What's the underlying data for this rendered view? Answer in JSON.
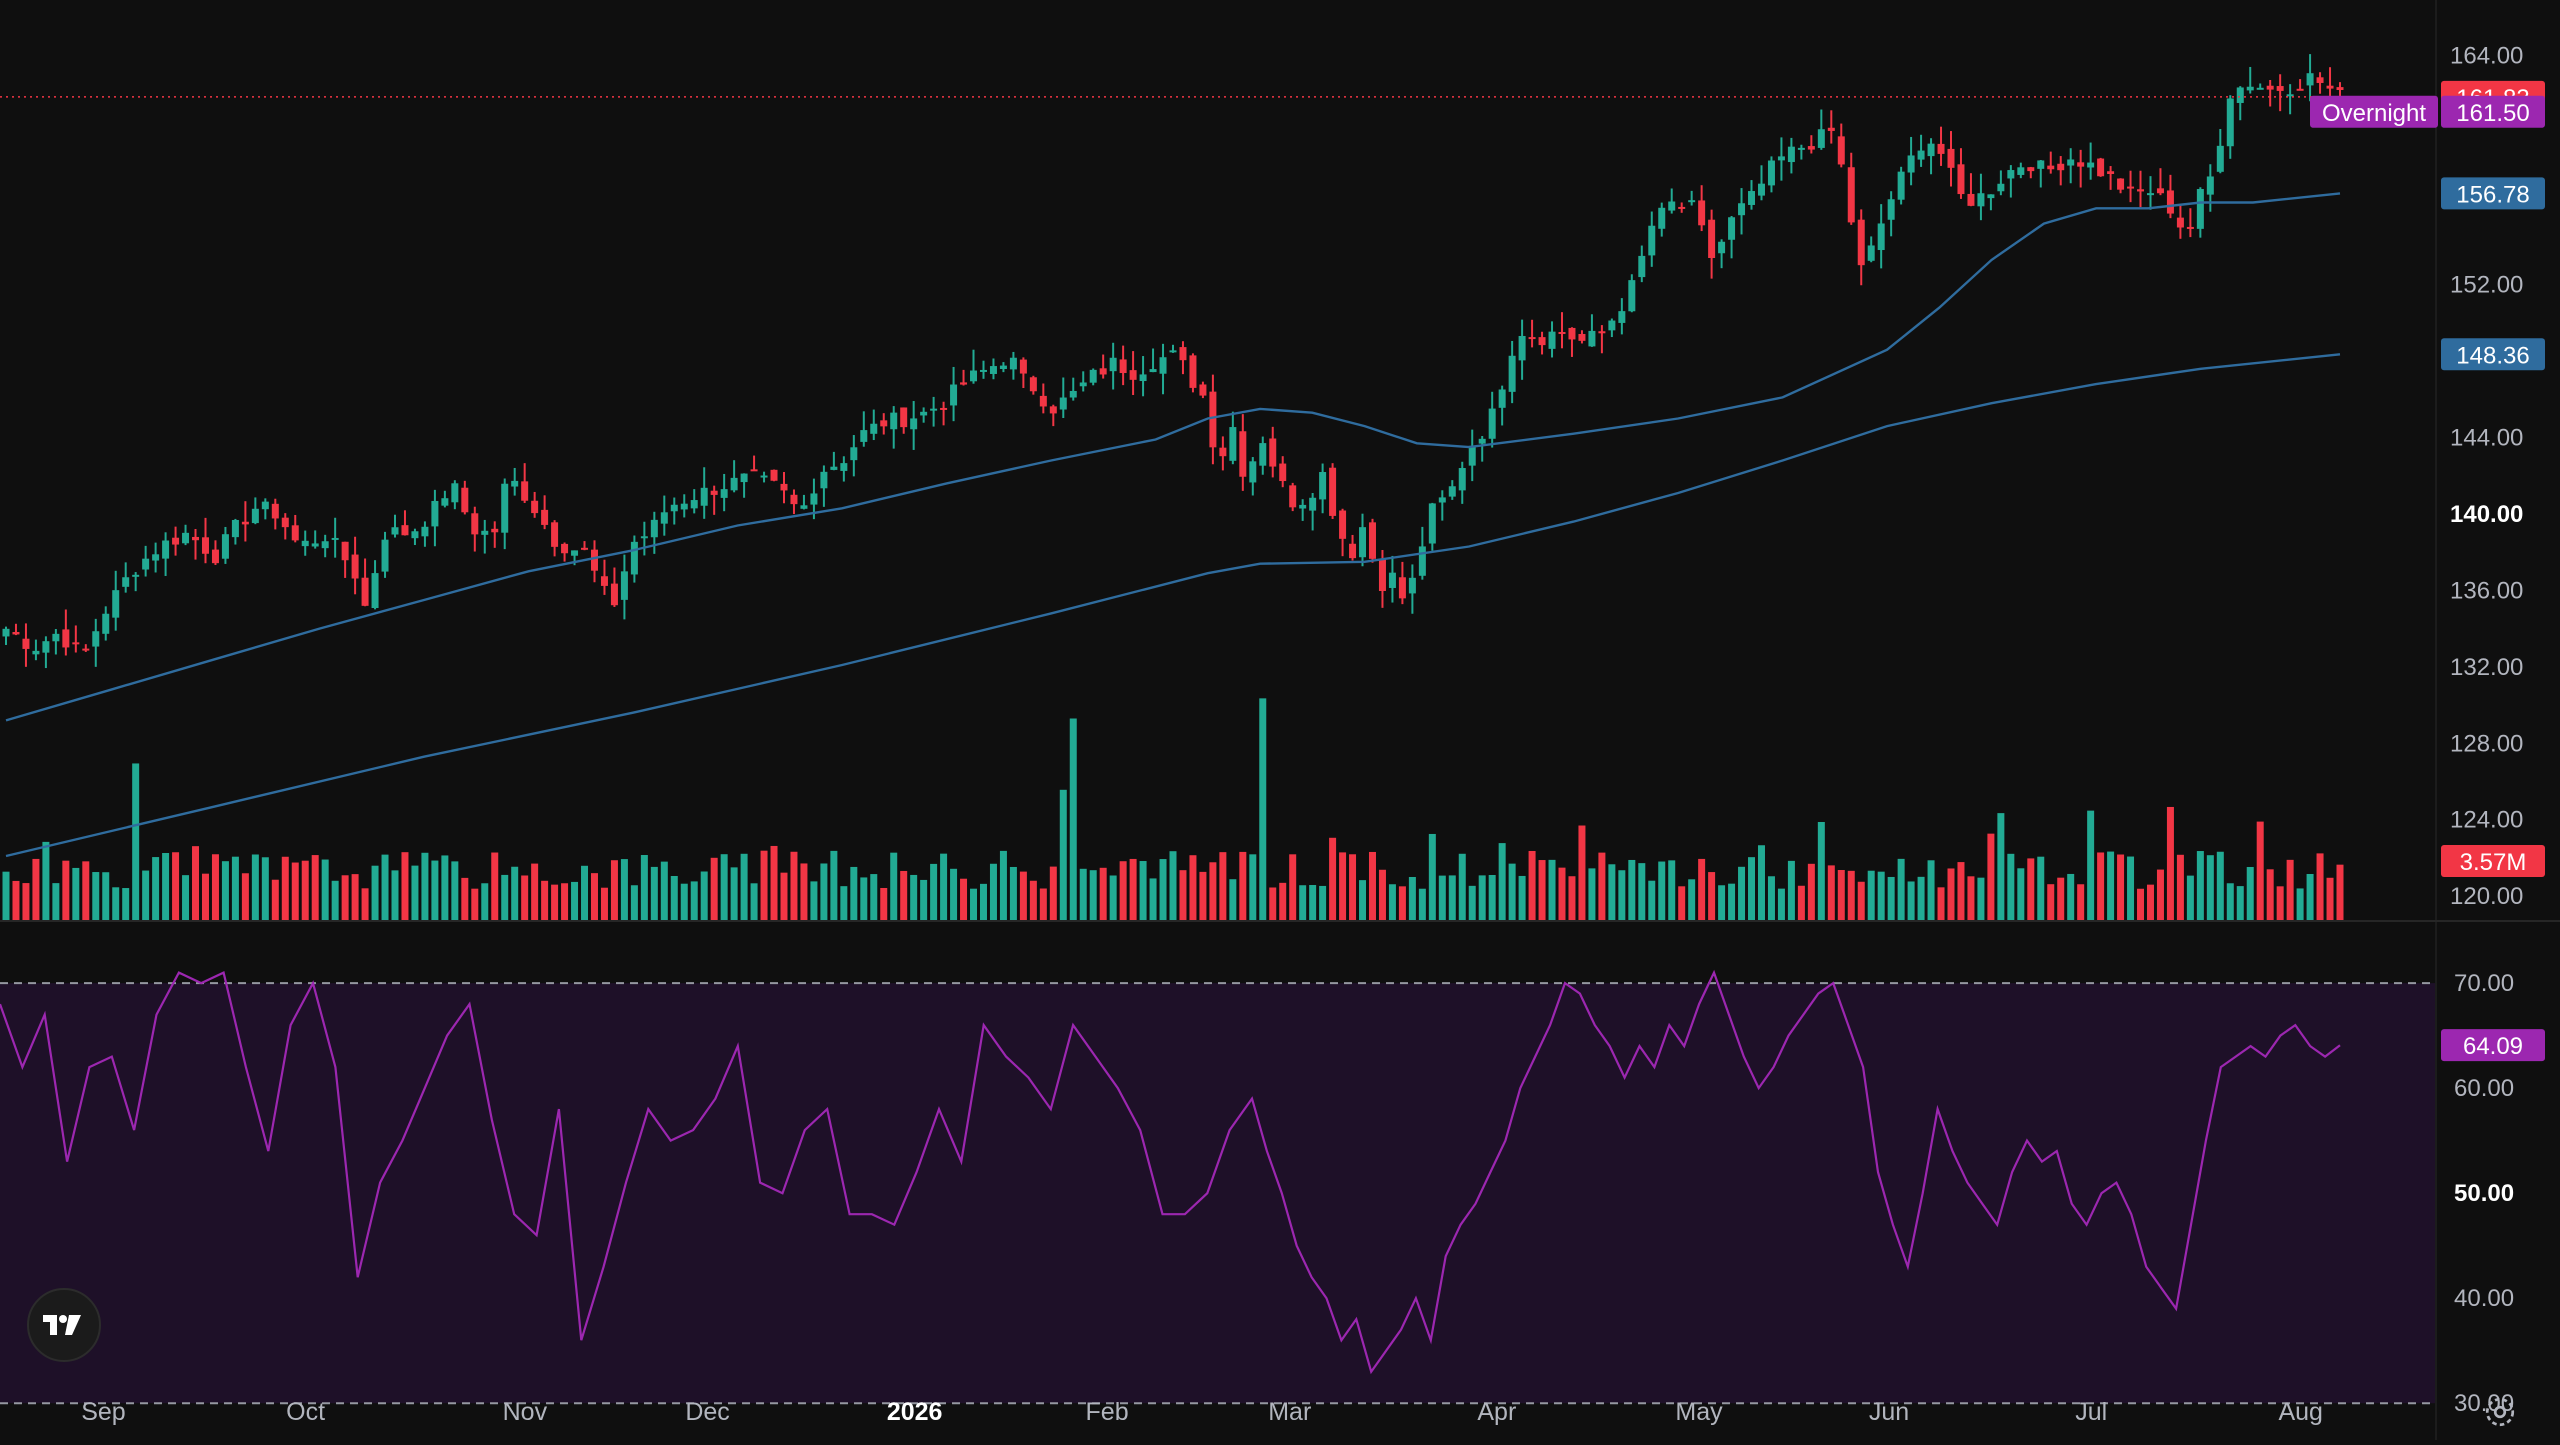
{
  "chart_data": [
    {
      "type": "candlestick",
      "pane": "price",
      "y_axis_ticks": [
        "164.00",
        "152.00",
        "144.00",
        "140.00",
        "136.00",
        "132.00",
        "128.00",
        "124.00",
        "120.00"
      ],
      "bold_tick": "140.00",
      "ylim": [
        118.7,
        166.9
      ],
      "x_axis_labels": [
        "Sep",
        "Oct",
        "Nov",
        "Dec",
        "2026",
        "Feb",
        "Mar",
        "Apr",
        "May",
        "Jun",
        "Jul",
        "Aug"
      ],
      "bold_x_label": "2026",
      "last_price": {
        "label": "161.83",
        "value": 161.83,
        "color": "#f23645"
      },
      "overnight": {
        "tag": "Overnight",
        "label": "161.50",
        "value": 161.5,
        "color": "#9c27b0"
      },
      "ma_fast": {
        "label": "156.78",
        "value": 156.78,
        "color": "#2f6c9e",
        "points": [
          [
            0,
            129.2
          ],
          [
            30,
            130.8
          ],
          [
            60,
            132.4
          ],
          [
            90,
            134
          ],
          [
            120,
            135.5
          ],
          [
            150,
            137
          ],
          [
            180,
            138.1
          ],
          [
            210,
            139.4
          ],
          [
            240,
            140.3
          ],
          [
            270,
            141.6
          ],
          [
            300,
            142.8
          ],
          [
            330,
            143.9
          ],
          [
            345,
            145
          ],
          [
            360,
            145.5
          ],
          [
            375,
            145.3
          ],
          [
            390,
            144.6
          ],
          [
            405,
            143.7
          ],
          [
            420,
            143.5
          ],
          [
            450,
            144.2
          ],
          [
            480,
            145
          ],
          [
            510,
            146.1
          ],
          [
            540,
            148.6
          ],
          [
            555,
            150.8
          ],
          [
            570,
            153.3
          ],
          [
            585,
            155.2
          ],
          [
            600,
            156
          ],
          [
            615,
            156
          ],
          [
            630,
            156.3
          ],
          [
            645,
            156.3
          ],
          [
            670,
            156.78
          ]
        ]
      },
      "ma_slow": {
        "label": "148.36",
        "value": 148.36,
        "color": "#2f6c9e",
        "points": [
          [
            0,
            122.1
          ],
          [
            60,
            124.7
          ],
          [
            120,
            127.3
          ],
          [
            180,
            129.6
          ],
          [
            240,
            132.1
          ],
          [
            300,
            134.8
          ],
          [
            345,
            136.9
          ],
          [
            360,
            137.4
          ],
          [
            390,
            137.5
          ],
          [
            420,
            138.3
          ],
          [
            450,
            139.6
          ],
          [
            480,
            141.1
          ],
          [
            510,
            142.8
          ],
          [
            540,
            144.6
          ],
          [
            570,
            145.8
          ],
          [
            600,
            146.8
          ],
          [
            630,
            147.6
          ],
          [
            670,
            148.36
          ]
        ]
      },
      "price_path": [
        [
          0,
          134
        ],
        [
          8,
          133
        ],
        [
          15,
          133.8
        ],
        [
          22,
          132.5
        ],
        [
          28,
          134.8
        ],
        [
          36,
          137
        ],
        [
          44,
          138.3
        ],
        [
          52,
          139
        ],
        [
          60,
          137.8
        ],
        [
          66,
          139.3
        ],
        [
          72,
          140.4
        ],
        [
          78,
          140
        ],
        [
          84,
          138.3
        ],
        [
          92,
          138.9
        ],
        [
          100,
          137
        ],
        [
          103,
          135.1
        ],
        [
          109,
          139.1
        ],
        [
          116,
          139
        ],
        [
          122,
          140
        ],
        [
          128,
          141.6
        ],
        [
          134,
          139.2
        ],
        [
          140,
          138.9
        ],
        [
          144,
          142
        ],
        [
          150,
          140.8
        ],
        [
          158,
          138.5
        ],
        [
          166,
          138
        ],
        [
          174,
          135
        ],
        [
          180,
          138.5
        ],
        [
          185,
          139.1
        ],
        [
          190,
          140.4
        ],
        [
          198,
          141
        ],
        [
          206,
          141.5
        ],
        [
          214,
          141.9
        ],
        [
          222,
          141.3
        ],
        [
          228,
          140
        ],
        [
          234,
          142.3
        ],
        [
          240,
          142.8
        ],
        [
          246,
          144.2
        ],
        [
          252,
          144.8
        ],
        [
          258,
          145
        ],
        [
          264,
          145.3
        ],
        [
          270,
          146
        ],
        [
          276,
          147
        ],
        [
          282,
          147.6
        ],
        [
          288,
          148.3
        ],
        [
          292,
          147
        ],
        [
          296,
          146.5
        ],
        [
          300,
          145.5
        ],
        [
          306,
          146.2
        ],
        [
          312,
          147.2
        ],
        [
          318,
          147.9
        ],
        [
          324,
          147.4
        ],
        [
          330,
          148.1
        ],
        [
          336,
          148.3
        ],
        [
          340,
          147.1
        ],
        [
          344,
          146.1
        ],
        [
          348,
          142.5
        ],
        [
          352,
          144.7
        ],
        [
          356,
          141.6
        ],
        [
          360,
          144.3
        ],
        [
          366,
          141.6
        ],
        [
          370,
          140.5
        ],
        [
          374,
          141
        ],
        [
          378,
          142.1
        ],
        [
          382,
          139.5
        ],
        [
          386,
          137.8
        ],
        [
          390,
          139.6
        ],
        [
          394,
          136.3
        ],
        [
          398,
          136.7
        ],
        [
          402,
          135.2
        ],
        [
          406,
          138.1
        ],
        [
          410,
          140.5
        ],
        [
          414,
          140.8
        ],
        [
          420,
          143.5
        ],
        [
          426,
          144.8
        ],
        [
          430,
          147.2
        ],
        [
          434,
          149.7
        ],
        [
          440,
          149.2
        ],
        [
          446,
          149.6
        ],
        [
          452,
          149
        ],
        [
          458,
          149.4
        ],
        [
          464,
          151
        ],
        [
          468,
          152.3
        ],
        [
          472,
          155
        ],
        [
          478,
          156.2
        ],
        [
          484,
          156
        ],
        [
          490,
          153.3
        ],
        [
          496,
          155.6
        ],
        [
          502,
          156.7
        ],
        [
          508,
          158.4
        ],
        [
          514,
          159.1
        ],
        [
          520,
          159.6
        ],
        [
          524,
          160
        ],
        [
          528,
          157.4
        ],
        [
          532,
          152.6
        ],
        [
          536,
          154
        ],
        [
          540,
          156.1
        ],
        [
          546,
          158.3
        ],
        [
          550,
          159.5
        ],
        [
          554,
          159.5
        ],
        [
          558,
          157.8
        ],
        [
          562,
          156.3
        ],
        [
          568,
          156.7
        ],
        [
          574,
          157.8
        ],
        [
          580,
          158.5
        ],
        [
          586,
          157.9
        ],
        [
          592,
          158.7
        ],
        [
          598,
          158.3
        ],
        [
          604,
          157.6
        ],
        [
          610,
          156.7
        ],
        [
          616,
          156.9
        ],
        [
          622,
          155.9
        ],
        [
          626,
          154.5
        ],
        [
          630,
          156.7
        ],
        [
          634,
          158
        ],
        [
          638,
          162
        ],
        [
          644,
          162.6
        ],
        [
          650,
          162.2
        ],
        [
          656,
          162.4
        ],
        [
          662,
          162.9
        ],
        [
          668,
          162.1
        ],
        [
          670,
          161.83
        ]
      ],
      "price_steps": 670
    },
    {
      "type": "bar",
      "pane": "volume",
      "label": "3.57M",
      "last_value_millions": 3.57,
      "colors": {
        "up": "#22ab94",
        "down": "#f23645"
      },
      "notable_spikes": [
        {
          "index": 36,
          "value": 10.1
        },
        {
          "index": 307,
          "value": 13
        },
        {
          "index": 362,
          "value": 14.3
        },
        {
          "index": 304,
          "value": 8.4
        }
      ],
      "typical_range_millions": [
        2.0,
        4.5
      ]
    },
    {
      "type": "line",
      "pane": "rsi",
      "label": "64.09",
      "value": 64.09,
      "color": "#9c27b0",
      "y_axis_ticks": [
        "70.00",
        "60.00",
        "50.00",
        "40.00",
        "30.00"
      ],
      "bold_tick": "50.00",
      "ylim": [
        28.4,
        72.2
      ],
      "upper_band": 70,
      "lower_band": 30,
      "rsi_path": [
        [
          0,
          68
        ],
        [
          6,
          62
        ],
        [
          12,
          67
        ],
        [
          18,
          53
        ],
        [
          24,
          62
        ],
        [
          30,
          63
        ],
        [
          36,
          56
        ],
        [
          42,
          67
        ],
        [
          48,
          71
        ],
        [
          54,
          70
        ],
        [
          60,
          71
        ],
        [
          66,
          62
        ],
        [
          72,
          54
        ],
        [
          78,
          66
        ],
        [
          84,
          70
        ],
        [
          90,
          62
        ],
        [
          96,
          42
        ],
        [
          102,
          51
        ],
        [
          108,
          55
        ],
        [
          114,
          60
        ],
        [
          120,
          65
        ],
        [
          126,
          68
        ],
        [
          132,
          57
        ],
        [
          138,
          48
        ],
        [
          144,
          46
        ],
        [
          150,
          58
        ],
        [
          156,
          36
        ],
        [
          162,
          43
        ],
        [
          168,
          51
        ],
        [
          174,
          58
        ],
        [
          180,
          55
        ],
        [
          186,
          56
        ],
        [
          192,
          59
        ],
        [
          198,
          64
        ],
        [
          204,
          51
        ],
        [
          210,
          50
        ],
        [
          216,
          56
        ],
        [
          222,
          58
        ],
        [
          228,
          48
        ],
        [
          234,
          48
        ],
        [
          240,
          47
        ],
        [
          246,
          52
        ],
        [
          252,
          58
        ],
        [
          258,
          53
        ],
        [
          264,
          66
        ],
        [
          270,
          63
        ],
        [
          276,
          61
        ],
        [
          282,
          58
        ],
        [
          288,
          66
        ],
        [
          294,
          63
        ],
        [
          300,
          60
        ],
        [
          306,
          56
        ],
        [
          312,
          48
        ],
        [
          318,
          48
        ],
        [
          324,
          50
        ],
        [
          330,
          56
        ],
        [
          336,
          59
        ],
        [
          340,
          54
        ],
        [
          344,
          50
        ],
        [
          348,
          45
        ],
        [
          352,
          42
        ],
        [
          356,
          40
        ],
        [
          360,
          36
        ],
        [
          364,
          38
        ],
        [
          368,
          33
        ],
        [
          372,
          35
        ],
        [
          376,
          37
        ],
        [
          380,
          40
        ],
        [
          384,
          36
        ],
        [
          388,
          44
        ],
        [
          392,
          47
        ],
        [
          396,
          49
        ],
        [
          400,
          52
        ],
        [
          404,
          55
        ],
        [
          408,
          60
        ],
        [
          412,
          63
        ],
        [
          416,
          66
        ],
        [
          420,
          70
        ],
        [
          424,
          69
        ],
        [
          428,
          66
        ],
        [
          432,
          64
        ],
        [
          436,
          61
        ],
        [
          440,
          64
        ],
        [
          444,
          62
        ],
        [
          448,
          66
        ],
        [
          452,
          64
        ],
        [
          456,
          68
        ],
        [
          460,
          71
        ],
        [
          464,
          67
        ],
        [
          468,
          63
        ],
        [
          472,
          60
        ],
        [
          476,
          62
        ],
        [
          480,
          65
        ],
        [
          484,
          67
        ],
        [
          488,
          69
        ],
        [
          492,
          70
        ],
        [
          496,
          66
        ],
        [
          500,
          62
        ],
        [
          504,
          52
        ],
        [
          508,
          47
        ],
        [
          512,
          43
        ],
        [
          516,
          50
        ],
        [
          520,
          58
        ],
        [
          524,
          54
        ],
        [
          528,
          51
        ],
        [
          532,
          49
        ],
        [
          536,
          47
        ],
        [
          540,
          52
        ],
        [
          544,
          55
        ],
        [
          548,
          53
        ],
        [
          552,
          54
        ],
        [
          556,
          49
        ],
        [
          560,
          47
        ],
        [
          564,
          50
        ],
        [
          568,
          51
        ],
        [
          572,
          48
        ],
        [
          576,
          43
        ],
        [
          580,
          41
        ],
        [
          584,
          39
        ],
        [
          588,
          47
        ],
        [
          592,
          55
        ],
        [
          596,
          62
        ],
        [
          600,
          63
        ],
        [
          604,
          64
        ],
        [
          608,
          63
        ],
        [
          612,
          65
        ],
        [
          616,
          66
        ],
        [
          620,
          64
        ],
        [
          624,
          63
        ],
        [
          628,
          64.09
        ]
      ],
      "rsi_steps": 628
    }
  ],
  "controls": {
    "logo_text": "TV",
    "settings": "gear-icon"
  }
}
